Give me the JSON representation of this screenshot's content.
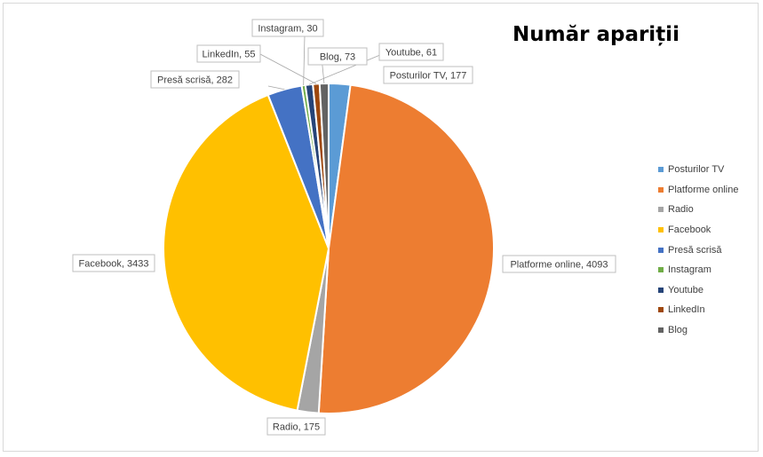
{
  "chart_data": {
    "type": "pie",
    "title": "Număr apariții",
    "categories": [
      "Posturilor TV",
      "Platforme online",
      "Radio",
      "Facebook",
      "Presă scrisă",
      "Instagram",
      "Youtube",
      "LinkedIn",
      "Blog"
    ],
    "values": [
      177,
      4093,
      175,
      3433,
      282,
      30,
      61,
      55,
      73
    ],
    "colors": [
      "#5b9bd5",
      "#ed7d31",
      "#a5a5a5",
      "#ffc000",
      "#4472c4",
      "#70ad47",
      "#264478",
      "#9e480e",
      "#636363"
    ],
    "data_labels": [
      "Posturilor TV, 177",
      "Platforme online, 4093",
      "Radio, 175",
      "Facebook, 3433",
      "Presă scrisă, 282",
      "Instagram, 30",
      "Youtube, 61",
      "LinkedIn, 55",
      "Blog, 73"
    ],
    "legend": "right"
  }
}
